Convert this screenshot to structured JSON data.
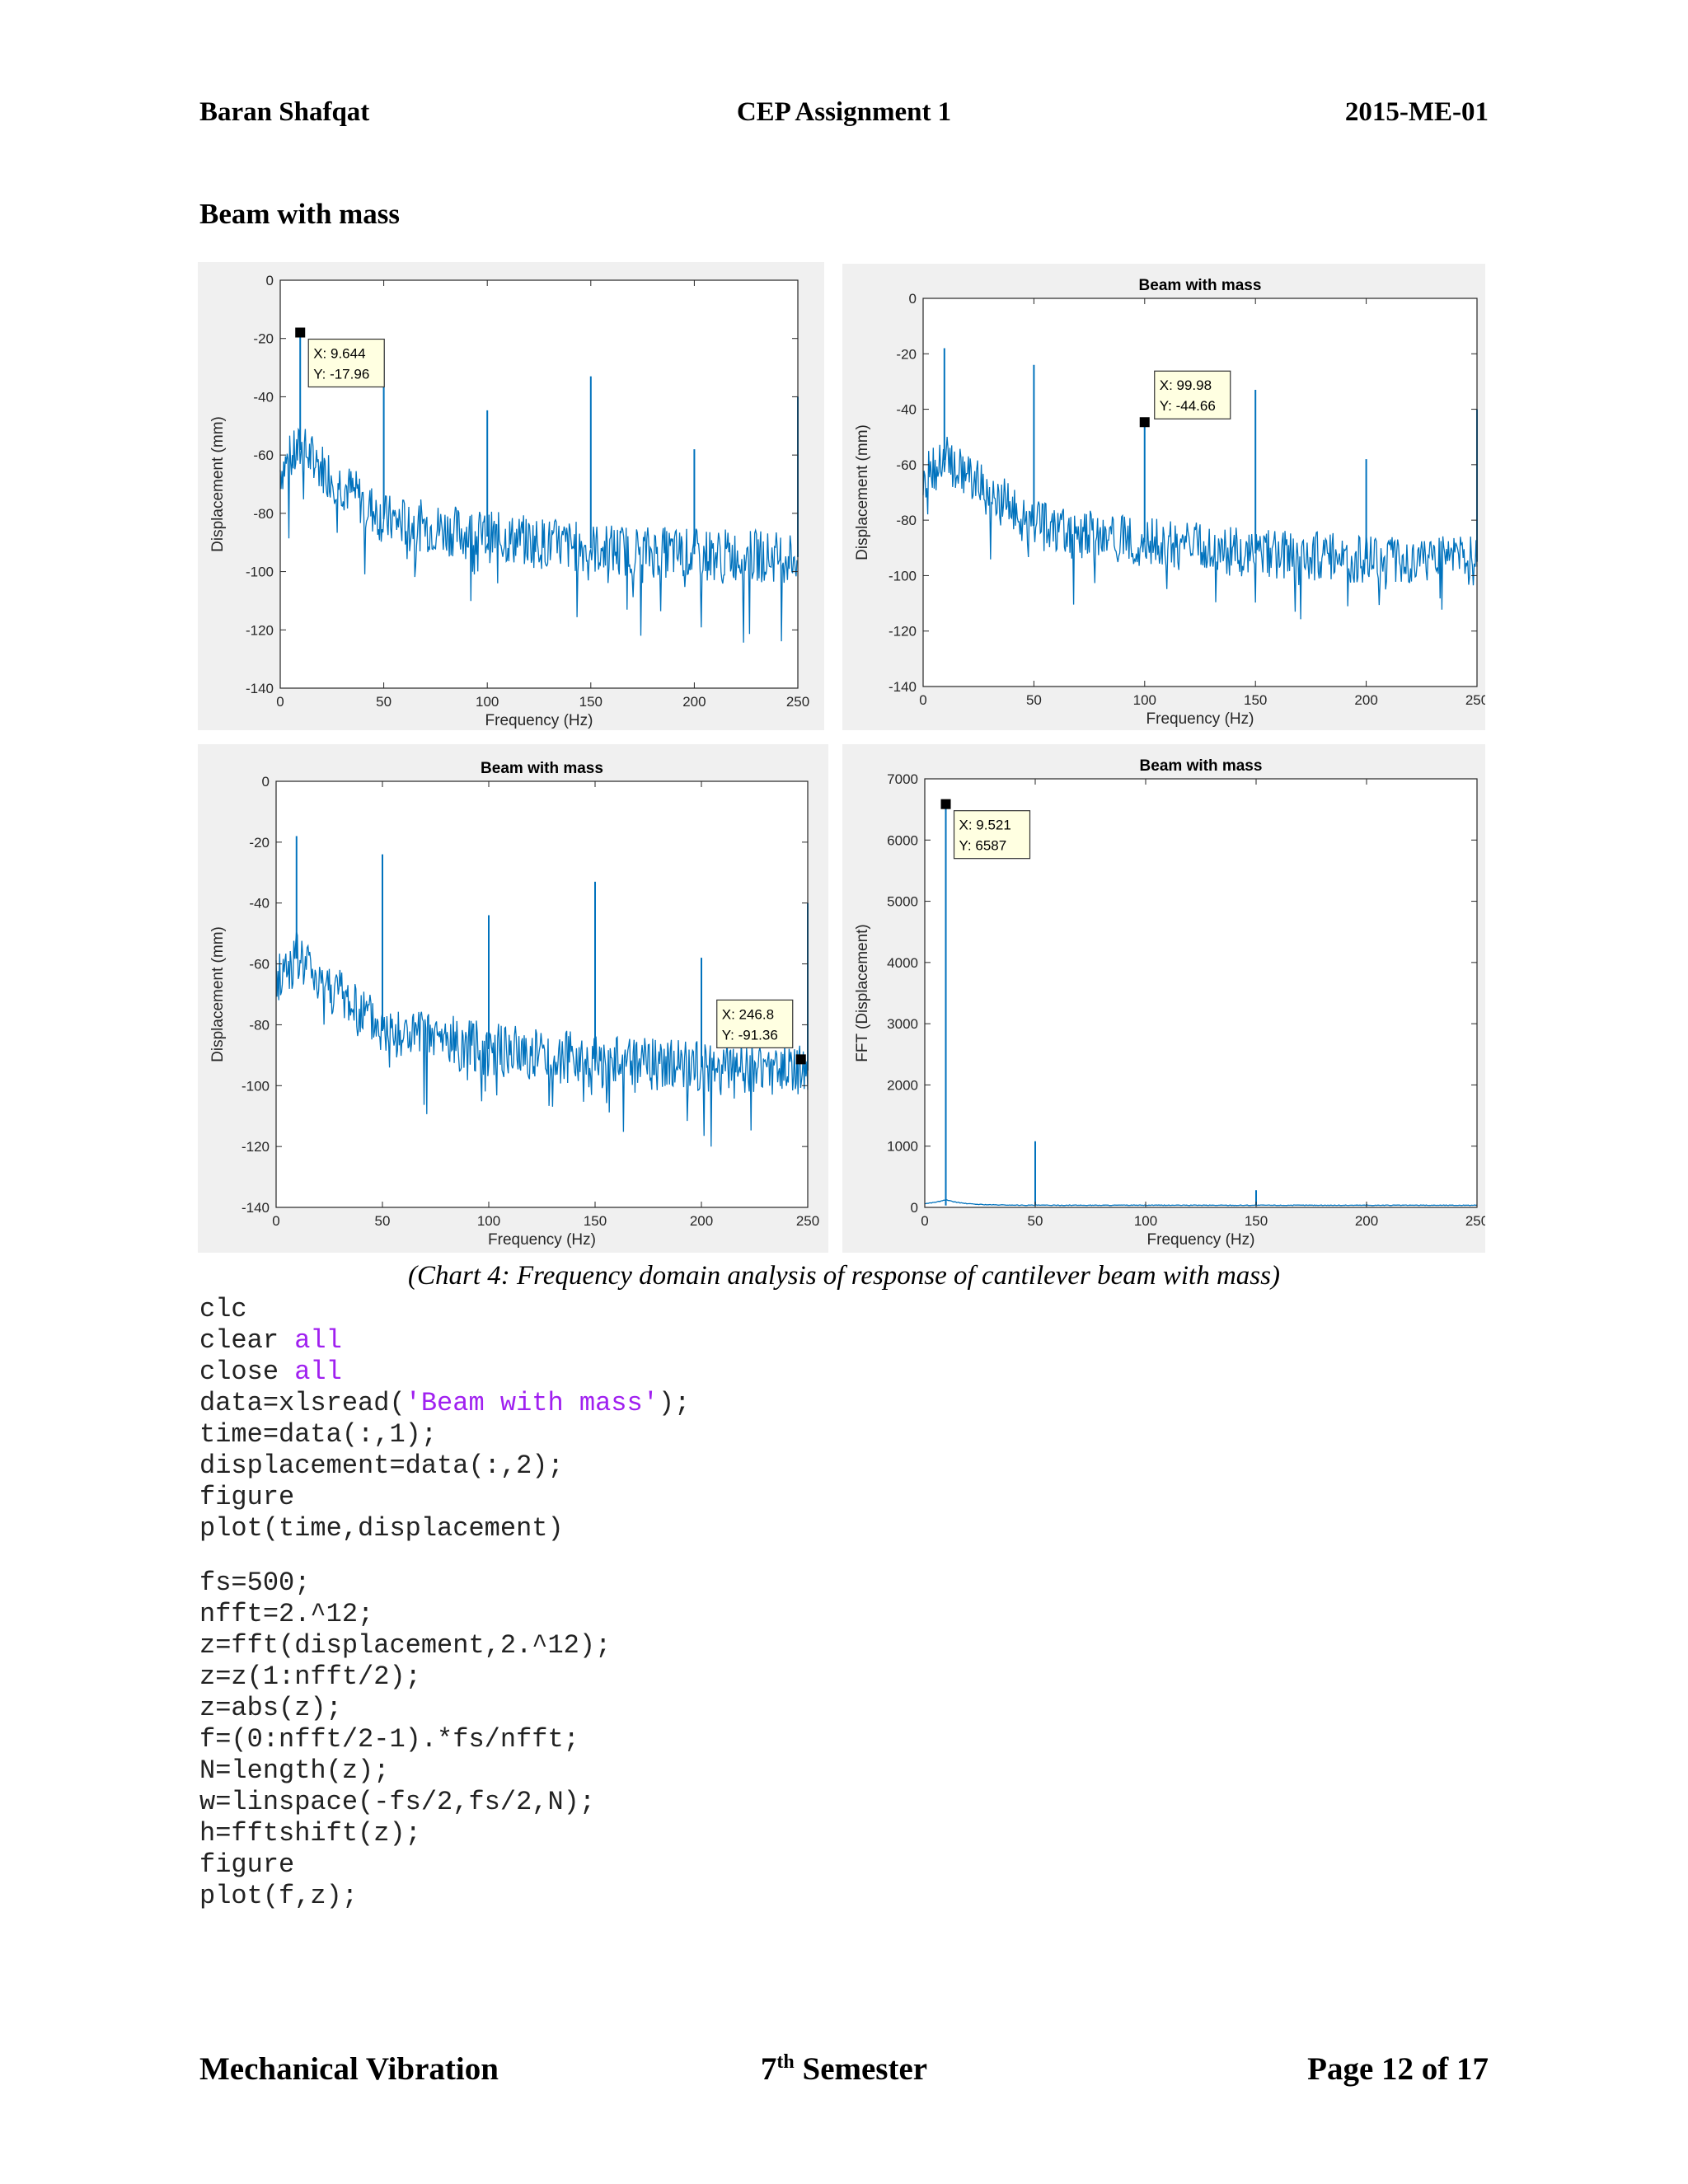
{
  "header": {
    "author": "Baran Shafqat",
    "title": "CEP Assignment 1",
    "roll": "2015-ME-01"
  },
  "section_title": "Beam with mass",
  "caption": "(Chart 4: Frequency domain analysis of response of cantilever beam with mass)",
  "chart_data": [
    {
      "type": "line",
      "title": "",
      "xlabel": "Frequency (Hz)",
      "ylabel": "Displacement (mm)",
      "xlim": [
        0,
        250
      ],
      "ylim": [
        -140,
        0
      ],
      "xticks": [
        0,
        50,
        100,
        150,
        200,
        250
      ],
      "yticks": [
        0,
        -20,
        -40,
        -60,
        -80,
        -100,
        -120,
        -140
      ],
      "peaks": [
        [
          9.644,
          -17.96
        ],
        [
          50,
          -24
        ],
        [
          100,
          -44.66
        ],
        [
          150,
          -33
        ],
        [
          200,
          -58
        ],
        [
          250,
          -40
        ]
      ],
      "floor": [
        [
          0,
          -65
        ],
        [
          10,
          -58
        ],
        [
          50,
          -82
        ],
        [
          100,
          -88
        ],
        [
          150,
          -92
        ],
        [
          200,
          -94
        ],
        [
          250,
          -95
        ]
      ],
      "datatip": {
        "x": 9.644,
        "y": -17.96,
        "label_x": "X: 9.644",
        "label_y": "Y: -17.96"
      }
    },
    {
      "type": "line",
      "title": "Beam with mass",
      "xlabel": "Frequency (Hz)",
      "ylabel": "Displacement (mm)",
      "xlim": [
        0,
        250
      ],
      "ylim": [
        -140,
        0
      ],
      "xticks": [
        0,
        50,
        100,
        150,
        200,
        250
      ],
      "yticks": [
        0,
        -20,
        -40,
        -60,
        -80,
        -100,
        -120,
        -140
      ],
      "peaks": [
        [
          9.6,
          -18
        ],
        [
          50,
          -24
        ],
        [
          99.98,
          -44.66
        ],
        [
          150,
          -33
        ],
        [
          200,
          -58
        ],
        [
          250,
          -40
        ]
      ],
      "floor": [
        [
          0,
          -65
        ],
        [
          10,
          -58
        ],
        [
          50,
          -82
        ],
        [
          100,
          -88
        ],
        [
          150,
          -92
        ],
        [
          200,
          -94
        ],
        [
          250,
          -95
        ]
      ],
      "datatip": {
        "x": 99.98,
        "y": -44.66,
        "label_x": "X: 99.98",
        "label_y": "Y: -44.66"
      }
    },
    {
      "type": "line",
      "title": "Beam with mass",
      "xlabel": "Frequency (Hz)",
      "ylabel": "Displacement (mm)",
      "xlim": [
        0,
        250
      ],
      "ylim": [
        -140,
        0
      ],
      "xticks": [
        0,
        50,
        100,
        150,
        200,
        250
      ],
      "yticks": [
        0,
        -20,
        -40,
        -60,
        -80,
        -100,
        -120,
        -140
      ],
      "peaks": [
        [
          9.6,
          -18
        ],
        [
          50,
          -24
        ],
        [
          100,
          -44
        ],
        [
          150,
          -33
        ],
        [
          200,
          -58
        ],
        [
          250,
          -40
        ]
      ],
      "floor": [
        [
          0,
          -65
        ],
        [
          10,
          -58
        ],
        [
          50,
          -82
        ],
        [
          100,
          -88
        ],
        [
          150,
          -92
        ],
        [
          200,
          -94
        ],
        [
          250,
          -95
        ]
      ],
      "datatip": {
        "x": 246.8,
        "y": -91.36,
        "label_x": "X: 246.8",
        "label_y": "Y: -91.36"
      }
    },
    {
      "type": "line",
      "title": "Beam with mass",
      "xlabel": "Frequency (Hz)",
      "ylabel": "FFT (Displacement)",
      "xlim": [
        0,
        250
      ],
      "ylim": [
        0,
        7000
      ],
      "xticks": [
        0,
        50,
        100,
        150,
        200,
        250
      ],
      "yticks": [
        0,
        1000,
        2000,
        3000,
        4000,
        5000,
        6000,
        7000
      ],
      "peaks": [
        [
          9.521,
          6587
        ],
        [
          50,
          1080
        ],
        [
          150,
          280
        ],
        [
          200,
          50
        ]
      ],
      "datatip": {
        "x": 9.521,
        "y": 6587,
        "label_x": "X: 9.521",
        "label_y": "Y: 6587"
      }
    }
  ],
  "code": {
    "lines": [
      [
        {
          "t": "clc"
        }
      ],
      [
        {
          "t": "clear "
        },
        {
          "t": "all",
          "kw": true
        }
      ],
      [
        {
          "t": "close "
        },
        {
          "t": "all",
          "kw": true
        }
      ],
      [
        {
          "t": "data=xlsread("
        },
        {
          "t": "'Beam with mass'",
          "kw": true
        },
        {
          "t": ");"
        }
      ],
      [
        {
          "t": "time=data(:,1);"
        }
      ],
      [
        {
          "t": "displacement=data(:,2);"
        }
      ],
      [
        {
          "t": "figure"
        }
      ],
      [
        {
          "t": "plot(time,displacement)"
        }
      ],
      [],
      [
        {
          "t": "fs=500;"
        }
      ],
      [
        {
          "t": "nfft=2.^12;"
        }
      ],
      [
        {
          "t": "z=fft(displacement,2.^12);"
        }
      ],
      [
        {
          "t": "z=z(1:nfft/2);"
        }
      ],
      [
        {
          "t": "z=abs(z);"
        }
      ],
      [
        {
          "t": "f=(0:nfft/2-1).*fs/nfft;"
        }
      ],
      [
        {
          "t": "N=length(z);"
        }
      ],
      [
        {
          "t": "w=linspace(-fs/2,fs/2,N);"
        }
      ],
      [
        {
          "t": "h=fftshift(z);"
        }
      ],
      [
        {
          "t": "figure"
        }
      ],
      [
        {
          "t": "plot(f,z);"
        }
      ]
    ]
  },
  "footer": {
    "course": "Mechanical Vibration",
    "semester_num": "7",
    "semester_sup": "th",
    "semester_word": " Semester",
    "page": "Page 12 of 17"
  },
  "colors": {
    "line": "#0072bd",
    "figure_bg": "#f0f0f0",
    "keyword": "#a020f0",
    "tip_bg": "#ffffe1"
  }
}
